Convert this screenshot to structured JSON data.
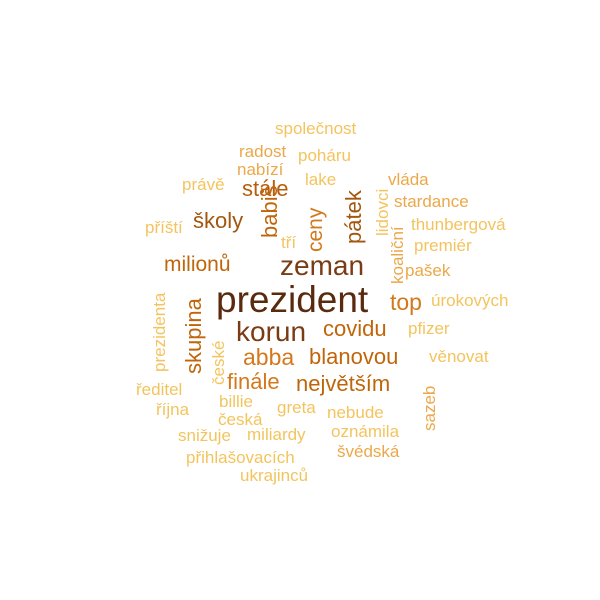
{
  "palette": {
    "darkest": "#5a2a0f",
    "dark": "#7a3c14",
    "brown": "#8b4513",
    "orange_dark": "#a3560e",
    "orange": "#c0660a",
    "orange_mid": "#d4781c",
    "orange_light": "#e3952e",
    "tan": "#eba84a",
    "pale": "#f3c45e"
  },
  "words": [
    "prezident",
    "zeman",
    "korun",
    "milionů",
    "stále",
    "školy",
    "babiš",
    "ceny",
    "pátek",
    "covidu",
    "blanovou",
    "abba",
    "finále",
    "největším",
    "skupina",
    "top",
    "společnost",
    "radost",
    "poháru",
    "nabízí",
    "lake",
    "právě",
    "vláda",
    "lidovci",
    "stardance",
    "příští",
    "tří",
    "koaliční",
    "thunbergová",
    "premiér",
    "pašek",
    "prezidenta",
    "úrokových",
    "pfizer",
    "české",
    "věnovat",
    "ředitel",
    "sazeb",
    "billie",
    "října",
    "greta",
    "nebude",
    "česká",
    "oznámila",
    "snižuje",
    "miliardy",
    "švédská",
    "přihlašovacích",
    "ukrajinců"
  ]
}
